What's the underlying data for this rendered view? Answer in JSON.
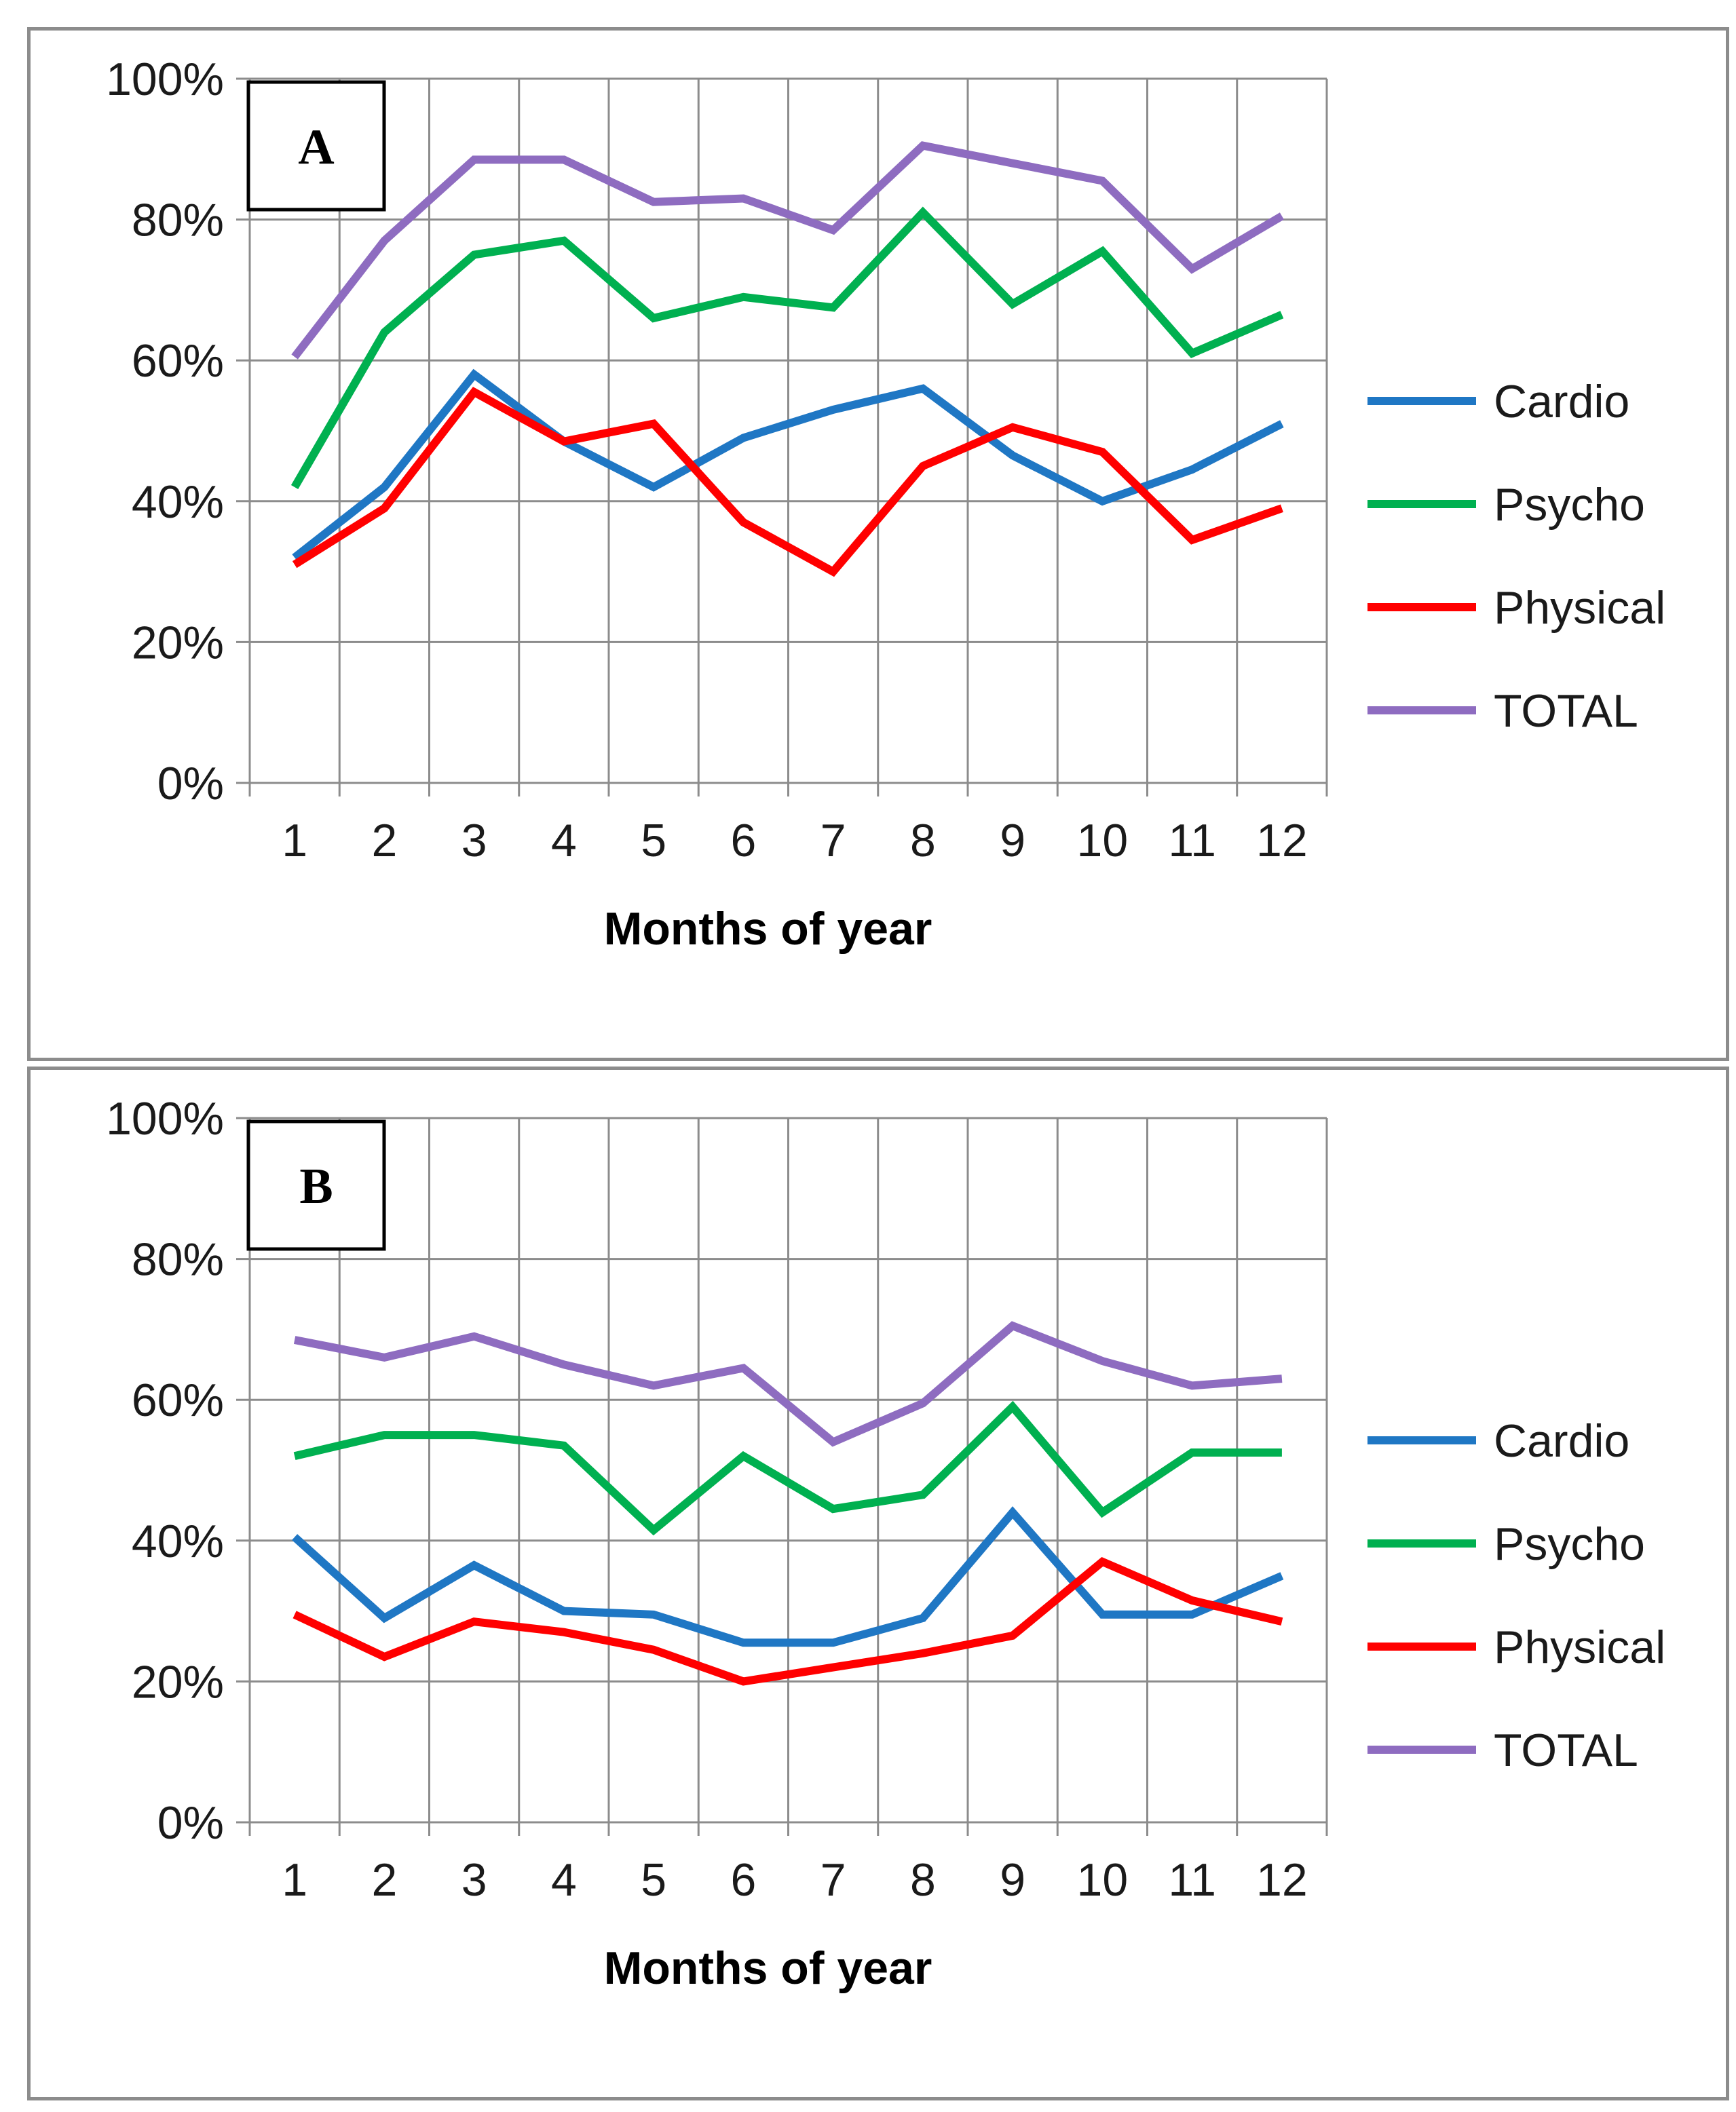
{
  "chart_data": [
    {
      "type": "line",
      "panel_label": "A",
      "categories": [
        "1",
        "2",
        "3",
        "4",
        "5",
        "6",
        "7",
        "8",
        "9",
        "10",
        "11",
        "12"
      ],
      "xlabel": "Months of year",
      "ylabel": "",
      "ylim": [
        0,
        100
      ],
      "yticks": [
        "0%",
        "20%",
        "40%",
        "60%",
        "80%",
        "100%"
      ],
      "grid": true,
      "legend_position": "right",
      "series": [
        {
          "name": "Cardio",
          "color": "#1f77c4",
          "values": [
            32,
            42,
            58,
            48.5,
            42,
            49,
            53,
            56,
            46.5,
            40,
            44.5,
            51
          ]
        },
        {
          "name": "Psycho",
          "color": "#00b050",
          "values": [
            42,
            64,
            75,
            77,
            66,
            69,
            67.5,
            81,
            68,
            75.5,
            61,
            66.5
          ]
        },
        {
          "name": "Physical",
          "color": "#ff0000",
          "values": [
            31,
            39,
            55.5,
            48.5,
            51,
            37,
            30,
            45,
            50.5,
            47,
            34.5,
            39
          ]
        },
        {
          "name": "TOTAL",
          "color": "#8e6cc0",
          "values": [
            60.5,
            77,
            88.5,
            88.5,
            82.5,
            83,
            78.5,
            90.5,
            88,
            85.5,
            73,
            80.5
          ]
        }
      ]
    },
    {
      "type": "line",
      "panel_label": "B",
      "categories": [
        "1",
        "2",
        "3",
        "4",
        "5",
        "6",
        "7",
        "8",
        "9",
        "10",
        "11",
        "12"
      ],
      "xlabel": "Months of year",
      "ylabel": "",
      "ylim": [
        0,
        100
      ],
      "yticks": [
        "0%",
        "20%",
        "40%",
        "60%",
        "80%",
        "100%"
      ],
      "grid": true,
      "legend_position": "right",
      "series": [
        {
          "name": "Cardio",
          "color": "#1f77c4",
          "values": [
            40.5,
            29,
            36.5,
            30,
            29.5,
            25.5,
            25.5,
            29,
            44,
            29.5,
            29.5,
            35
          ]
        },
        {
          "name": "Psycho",
          "color": "#00b050",
          "values": [
            52,
            55,
            55,
            53.5,
            41.5,
            52,
            44.5,
            46.5,
            59,
            44,
            52.5,
            52.5
          ]
        },
        {
          "name": "Physical",
          "color": "#ff0000",
          "values": [
            29.5,
            23.5,
            28.5,
            27,
            24.5,
            20,
            22,
            24,
            26.5,
            37,
            31.5,
            28.5
          ]
        },
        {
          "name": "TOTAL",
          "color": "#8e6cc0",
          "values": [
            68.5,
            66,
            69,
            65,
            62,
            64.5,
            54,
            59.5,
            70.5,
            65.5,
            62,
            63
          ]
        }
      ]
    }
  ]
}
